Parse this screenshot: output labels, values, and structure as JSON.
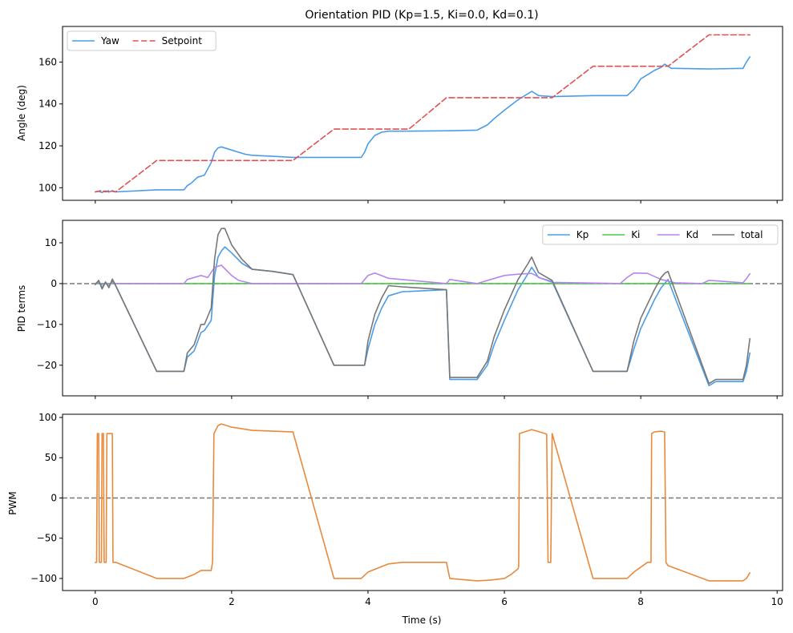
{
  "chart_data": [
    {
      "type": "line",
      "title": "Orientation PID  (Kp=1.5, Ki=0.0, Kd=0.1)",
      "xlabel": "",
      "ylabel": "Angle (deg)",
      "xlim": [
        -0.48,
        10.08
      ],
      "ylim": [
        94.0,
        177.0
      ],
      "xticks": [
        0,
        2,
        4,
        6,
        8,
        10
      ],
      "show_xtick_labels": false,
      "yticks": [
        100,
        120,
        140,
        160
      ],
      "grid": false,
      "legend": "upper-left",
      "legend_columns": 2,
      "series": [
        {
          "name": "Yaw",
          "color": "#4a9de8",
          "dash": "solid",
          "x": [
            0.0,
            0.05,
            0.1,
            0.15,
            0.2,
            0.25,
            0.3,
            0.9,
            1.3,
            1.35,
            1.4,
            1.5,
            1.6,
            1.7,
            1.75,
            1.8,
            1.85,
            2.0,
            2.2,
            2.3,
            2.6,
            2.9,
            3.5,
            3.9,
            3.95,
            4.0,
            4.1,
            4.2,
            4.3,
            4.5,
            5.2,
            5.6,
            5.75,
            5.85,
            6.0,
            6.2,
            6.35,
            6.4,
            6.5,
            6.7,
            7.3,
            7.8,
            7.9,
            8.0,
            8.2,
            8.3,
            8.35,
            8.45,
            8.5,
            9.0,
            9.5,
            9.55,
            9.6
          ],
          "y": [
            98,
            98.3,
            97.7,
            98.5,
            97.9,
            98.6,
            98,
            99,
            99,
            101,
            102,
            105,
            106,
            112,
            117,
            119,
            119.5,
            118,
            116,
            115.5,
            115,
            114.5,
            114.5,
            114.5,
            117,
            121,
            125,
            126.5,
            127,
            127,
            127.2,
            127.5,
            130,
            133,
            137,
            142,
            145,
            146,
            144,
            143.5,
            144,
            144,
            147,
            152,
            156,
            157.5,
            159,
            157,
            157,
            156.7,
            157,
            160,
            162.5
          ]
        },
        {
          "name": "Setpoint",
          "color": "#e05050",
          "dash": "dashed",
          "x": [
            0.0,
            0.1,
            0.15,
            0.2,
            0.3,
            0.9,
            2.9,
            3.5,
            4.6,
            5.15,
            6.7,
            7.3,
            8.4,
            9.0,
            9.6
          ],
          "y": [
            98,
            98.7,
            98,
            98.6,
            98,
            113,
            113,
            128,
            128,
            143,
            143,
            158,
            158,
            173,
            173
          ]
        }
      ]
    },
    {
      "type": "line",
      "title": "",
      "xlabel": "",
      "ylabel": "PID terms",
      "xlim": [
        -0.48,
        10.08
      ],
      "ylim": [
        -27.5,
        15.5
      ],
      "xticks": [
        0,
        2,
        4,
        6,
        8,
        10
      ],
      "show_xtick_labels": false,
      "yticks": [
        -20,
        -10,
        0,
        10
      ],
      "grid": false,
      "legend": "upper-right",
      "legend_columns": 4,
      "hline": 0,
      "series": [
        {
          "name": "Kp",
          "color": "#4a9de8",
          "dash": "solid",
          "x": [
            0.0,
            0.05,
            0.1,
            0.15,
            0.2,
            0.25,
            0.3,
            0.9,
            1.3,
            1.35,
            1.45,
            1.55,
            1.6,
            1.7,
            1.75,
            1.8,
            1.85,
            1.9,
            2.0,
            2.15,
            2.3,
            2.6,
            2.9,
            3.5,
            3.95,
            4.0,
            4.1,
            4.2,
            4.3,
            4.5,
            5.15,
            5.2,
            5.6,
            5.75,
            5.85,
            6.0,
            6.2,
            6.35,
            6.4,
            6.5,
            6.7,
            7.3,
            7.8,
            7.9,
            8.0,
            8.2,
            8.3,
            8.35,
            8.4,
            9.0,
            9.1,
            9.5,
            9.55,
            9.6
          ],
          "y": [
            -0.2,
            0.5,
            -1.0,
            0.2,
            -0.8,
            0.8,
            -0.5,
            -21.5,
            -21.5,
            -18,
            -16.5,
            -12,
            -11.5,
            -9,
            2,
            6.5,
            8,
            9,
            7.5,
            5,
            3.5,
            3,
            2.2,
            -20,
            -20,
            -16,
            -10,
            -6,
            -3,
            -2,
            -1.5,
            -23.5,
            -23.5,
            -20,
            -15,
            -9,
            -1.5,
            2.5,
            4,
            1.5,
            0.5,
            -21.5,
            -21.5,
            -16,
            -11,
            -4,
            -1,
            0,
            1,
            -25,
            -24,
            -24,
            -21.5,
            -17
          ]
        },
        {
          "name": "Ki",
          "color": "#4ccc4c",
          "dash": "solid",
          "x": [
            0.0,
            9.6
          ],
          "y": [
            0.0,
            0.0
          ]
        },
        {
          "name": "Kd",
          "color": "#b685ef",
          "dash": "solid",
          "x": [
            0.0,
            0.05,
            0.1,
            0.15,
            0.2,
            0.25,
            0.3,
            0.9,
            1.3,
            1.35,
            1.45,
            1.55,
            1.65,
            1.75,
            1.85,
            2.0,
            2.1,
            2.3,
            3.9,
            4.0,
            4.1,
            4.3,
            5.15,
            5.2,
            5.6,
            5.8,
            6.0,
            6.2,
            6.4,
            6.55,
            6.7,
            7.7,
            7.8,
            7.9,
            8.1,
            8.3,
            8.5,
            8.9,
            9.0,
            9.5,
            9.55,
            9.6
          ],
          "y": [
            0.0,
            0.3,
            -0.3,
            0.2,
            -0.2,
            0.3,
            0.0,
            0.0,
            0.0,
            1.0,
            1.5,
            2.0,
            1.5,
            4,
            4.5,
            2,
            0.8,
            0.0,
            0.0,
            2.0,
            2.6,
            1.3,
            0.0,
            1.0,
            0.0,
            1.0,
            2.0,
            2.3,
            2.5,
            1.2,
            0.3,
            0.0,
            1.5,
            2.6,
            2.5,
            1.0,
            0.2,
            0.0,
            0.8,
            0.2,
            1.2,
            2.4
          ]
        },
        {
          "name": "total",
          "color": "#777777",
          "dash": "solid",
          "x": [
            0.0,
            0.05,
            0.1,
            0.15,
            0.2,
            0.25,
            0.3,
            0.9,
            1.3,
            1.35,
            1.45,
            1.55,
            1.6,
            1.7,
            1.75,
            1.8,
            1.85,
            1.9,
            2.0,
            2.15,
            2.3,
            2.6,
            2.9,
            3.5,
            3.95,
            4.0,
            4.1,
            4.2,
            4.3,
            4.5,
            5.15,
            5.2,
            5.6,
            5.75,
            5.85,
            6.0,
            6.2,
            6.35,
            6.4,
            6.5,
            6.7,
            7.3,
            7.8,
            7.9,
            8.0,
            8.2,
            8.3,
            8.35,
            8.4,
            9.0,
            9.1,
            9.5,
            9.55,
            9.6
          ],
          "y": [
            -0.2,
            0.8,
            -1.3,
            0.4,
            -1.0,
            1.1,
            -0.5,
            -21.5,
            -21.5,
            -17,
            -15,
            -10,
            -10,
            -6,
            6,
            12,
            13.5,
            13.5,
            9.5,
            6,
            3.5,
            3,
            2.2,
            -20,
            -20,
            -14,
            -7.5,
            -3.5,
            -0.5,
            -0.8,
            -1.5,
            -23,
            -23,
            -19,
            -13,
            -6.5,
            1,
            5,
            6.5,
            2.7,
            0.8,
            -21.5,
            -21.5,
            -14,
            -8.5,
            -1.5,
            1.5,
            2.5,
            3,
            -24.5,
            -23.5,
            -23.5,
            -20,
            -13.5
          ]
        }
      ]
    },
    {
      "type": "line",
      "title": "",
      "xlabel": "Time (s)",
      "ylabel": "PWM",
      "xlim": [
        -0.48,
        10.08
      ],
      "ylim": [
        -115.0,
        104.0
      ],
      "xticks": [
        0,
        2,
        4,
        6,
        8,
        10
      ],
      "show_xtick_labels": true,
      "yticks": [
        -100,
        -50,
        0,
        50,
        100
      ],
      "grid": false,
      "legend": "none",
      "hline": 0,
      "series": [
        {
          "name": "",
          "color": "#e88a3c",
          "dash": "solid",
          "x": [
            0.0,
            0.02,
            0.03,
            0.05,
            0.06,
            0.09,
            0.1,
            0.12,
            0.13,
            0.16,
            0.17,
            0.19,
            0.2,
            0.25,
            0.26,
            0.3,
            0.9,
            1.3,
            1.45,
            1.55,
            1.7,
            1.72,
            1.74,
            1.8,
            1.85,
            2.0,
            2.3,
            2.9,
            3.5,
            3.9,
            4.0,
            4.3,
            4.5,
            5.15,
            5.2,
            5.6,
            5.8,
            6.0,
            6.1,
            6.2,
            6.21,
            6.22,
            6.4,
            6.6,
            6.62,
            6.64,
            6.68,
            6.7,
            7.3,
            7.8,
            7.9,
            8.1,
            8.15,
            8.16,
            8.2,
            8.3,
            8.35,
            8.37,
            8.4,
            9.0,
            9.5,
            9.55,
            9.6
          ],
          "y": [
            -80,
            -80,
            80,
            80,
            -80,
            -80,
            80,
            80,
            -80,
            -80,
            80,
            80,
            80,
            80,
            -80,
            -80,
            -100,
            -100,
            -95,
            -90,
            -90,
            -80,
            80,
            90,
            92,
            88,
            84,
            82,
            -100,
            -100,
            -92,
            -82,
            -80,
            -80,
            -100,
            -103,
            -102,
            -100,
            -95,
            -88,
            -85,
            80,
            85,
            80,
            79,
            -80,
            -80,
            80,
            -100,
            -100,
            -92,
            -80,
            -80,
            80,
            82,
            83,
            82,
            -80,
            -84,
            -103,
            -103,
            -100,
            -93
          ]
        }
      ]
    }
  ]
}
